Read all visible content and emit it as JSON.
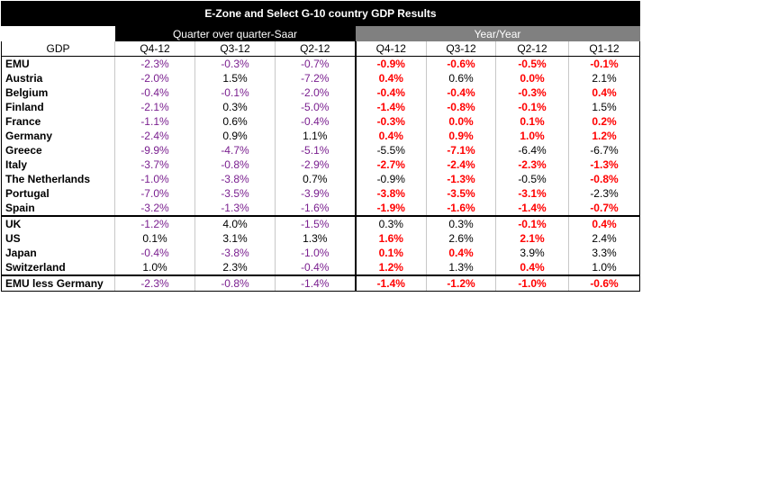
{
  "title": "E-Zone and Select G-10 country GDP Results",
  "group_qoq": "Quarter over quarter-Saar",
  "group_yoy": "Year/Year",
  "header": [
    "GDP",
    "Q4-12",
    "Q3-12",
    "Q2-12",
    "Q4-12",
    "Q3-12",
    "Q2-12",
    "Q1-12"
  ],
  "rows": [
    {
      "name": "EMU",
      "qoq": [
        "-2.3%",
        "-0.3%",
        "-0.7%"
      ],
      "yoy": [
        "-0.9%",
        "-0.6%",
        "-0.5%",
        "-0.1%"
      ],
      "yoy_red": [
        true,
        true,
        true,
        true
      ]
    },
    {
      "name": "Austria",
      "qoq": [
        "-2.0%",
        "1.5%",
        "-7.2%"
      ],
      "yoy": [
        "0.4%",
        "0.6%",
        "0.0%",
        "2.1%"
      ],
      "yoy_red": [
        true,
        false,
        true,
        false
      ]
    },
    {
      "name": "Belgium",
      "qoq": [
        "-0.4%",
        "-0.1%",
        "-2.0%"
      ],
      "yoy": [
        "-0.4%",
        "-0.4%",
        "-0.3%",
        "0.4%"
      ],
      "yoy_red": [
        true,
        true,
        true,
        true
      ]
    },
    {
      "name": "Finland",
      "qoq": [
        "-2.1%",
        "0.3%",
        "-5.0%"
      ],
      "yoy": [
        "-1.4%",
        "-0.8%",
        "-0.1%",
        "1.5%"
      ],
      "yoy_red": [
        true,
        true,
        true,
        false
      ]
    },
    {
      "name": "France",
      "qoq": [
        "-1.1%",
        "0.6%",
        "-0.4%"
      ],
      "yoy": [
        "-0.3%",
        "0.0%",
        "0.1%",
        "0.2%"
      ],
      "yoy_red": [
        true,
        true,
        true,
        true
      ]
    },
    {
      "name": "Germany",
      "qoq": [
        "-2.4%",
        "0.9%",
        "1.1%"
      ],
      "yoy": [
        "0.4%",
        "0.9%",
        "1.0%",
        "1.2%"
      ],
      "yoy_red": [
        true,
        true,
        true,
        true
      ]
    },
    {
      "name": "Greece",
      "qoq": [
        "-9.9%",
        "-4.7%",
        "-5.1%"
      ],
      "yoy": [
        "-5.5%",
        "-7.1%",
        "-6.4%",
        "-6.7%"
      ],
      "yoy_red": [
        false,
        true,
        false,
        false
      ]
    },
    {
      "name": "Italy",
      "qoq": [
        "-3.7%",
        "-0.8%",
        "-2.9%"
      ],
      "yoy": [
        "-2.7%",
        "-2.4%",
        "-2.3%",
        "-1.3%"
      ],
      "yoy_red": [
        true,
        true,
        true,
        true
      ]
    },
    {
      "name": "The Netherlands",
      "qoq": [
        "-1.0%",
        "-3.8%",
        "0.7%"
      ],
      "yoy": [
        "-0.9%",
        "-1.3%",
        "-0.5%",
        "-0.8%"
      ],
      "yoy_red": [
        false,
        true,
        false,
        true
      ]
    },
    {
      "name": "Portugal",
      "qoq": [
        "-7.0%",
        "-3.5%",
        "-3.9%"
      ],
      "yoy": [
        "-3.8%",
        "-3.5%",
        "-3.1%",
        "-2.3%"
      ],
      "yoy_red": [
        true,
        true,
        true,
        false
      ]
    },
    {
      "name": "Spain",
      "qoq": [
        "-3.2%",
        "-1.3%",
        "-1.6%"
      ],
      "yoy": [
        "-1.9%",
        "-1.6%",
        "-1.4%",
        "-0.7%"
      ],
      "yoy_red": [
        true,
        true,
        true,
        true
      ]
    },
    {
      "name": "UK",
      "qoq": [
        "-1.2%",
        "4.0%",
        "-1.5%"
      ],
      "yoy": [
        "0.3%",
        "0.3%",
        "-0.1%",
        "0.4%"
      ],
      "yoy_red": [
        false,
        false,
        true,
        true
      ],
      "section_start": true
    },
    {
      "name": "US",
      "qoq": [
        "0.1%",
        "3.1%",
        "1.3%"
      ],
      "yoy": [
        "1.6%",
        "2.6%",
        "2.1%",
        "2.4%"
      ],
      "yoy_red": [
        true,
        false,
        true,
        false
      ]
    },
    {
      "name": "Japan",
      "qoq": [
        "-0.4%",
        "-3.8%",
        "-1.0%"
      ],
      "yoy": [
        "0.1%",
        "0.4%",
        "3.9%",
        "3.3%"
      ],
      "yoy_red": [
        true,
        true,
        false,
        false
      ]
    },
    {
      "name": "Switzerland",
      "qoq": [
        "1.0%",
        "2.3%",
        "-0.4%"
      ],
      "yoy": [
        "1.2%",
        "1.3%",
        "0.4%",
        "1.0%"
      ],
      "yoy_red": [
        true,
        false,
        true,
        false
      ]
    },
    {
      "name": "EMU less Germany",
      "qoq": [
        "-2.3%",
        "-0.8%",
        "-1.4%"
      ],
      "yoy": [
        "-1.4%",
        "-1.2%",
        "-1.0%",
        "-0.6%"
      ],
      "yoy_red": [
        true,
        true,
        true,
        true
      ],
      "section_start": true
    }
  ]
}
